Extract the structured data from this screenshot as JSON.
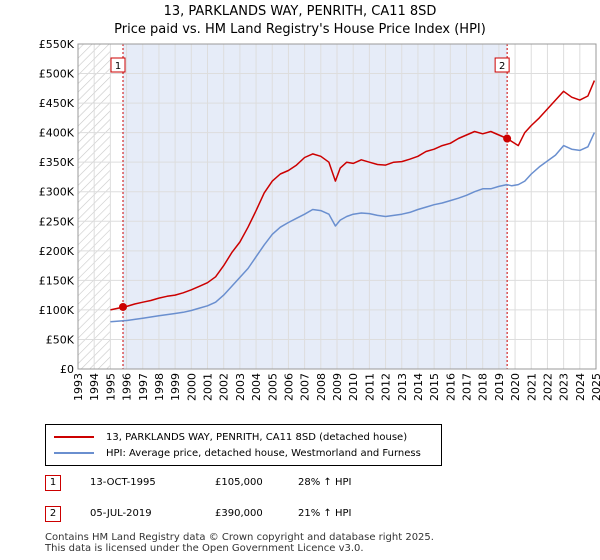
{
  "title_line1": "13, PARKLANDS WAY, PENRITH, CA11 8SD",
  "title_line2": "Price paid vs. HM Land Registry's House Price Index (HPI)",
  "colors": {
    "property": "#cc0000",
    "hpi": "#6a8fcf",
    "shade": "#e6ecf8",
    "hatch": "#c8c8c8",
    "grid": "#dddddd",
    "marker_box": "#cc0000"
  },
  "legend": {
    "property_label": "13, PARKLANDS WAY, PENRITH, CA11 8SD (detached house)",
    "hpi_label": "HPI: Average price, detached house, Westmorland and Furness"
  },
  "sales": [
    {
      "num": "1",
      "date": "13-OCT-1995",
      "price": "£105,000",
      "pct": "28% ↑ HPI"
    },
    {
      "num": "2",
      "date": "05-JUL-2019",
      "price": "£390,000",
      "pct": "21% ↑ HPI"
    }
  ],
  "footer": {
    "line1": "Contains HM Land Registry data © Crown copyright and database right 2025.",
    "line2": "This data is licensed under the Open Government Licence v3.0."
  },
  "chart_data": {
    "type": "line",
    "xlim": [
      1993,
      2025
    ],
    "ylim": [
      0,
      550000
    ],
    "x_ticks": [
      1993,
      1994,
      1995,
      1996,
      1997,
      1998,
      1999,
      2000,
      2001,
      2002,
      2003,
      2004,
      2005,
      2006,
      2007,
      2008,
      2009,
      2010,
      2011,
      2012,
      2013,
      2014,
      2015,
      2016,
      2017,
      2018,
      2019,
      2020,
      2021,
      2022,
      2023,
      2024,
      2025
    ],
    "y_ticks": [
      0,
      50000,
      100000,
      150000,
      200000,
      250000,
      300000,
      350000,
      400000,
      450000,
      500000,
      550000
    ],
    "y_tick_labels": [
      "£0",
      "£50K",
      "£100K",
      "£150K",
      "£200K",
      "£250K",
      "£300K",
      "£350K",
      "£400K",
      "£450K",
      "£500K",
      "£550K"
    ],
    "hatched_range": [
      1993,
      1995.0
    ],
    "shaded_range": [
      1995.78,
      2019.51
    ],
    "markers": [
      {
        "label": "1",
        "x": 1995.78,
        "y": 105000
      },
      {
        "label": "2",
        "x": 2019.51,
        "y": 390000
      }
    ],
    "series": [
      {
        "name": "13, PARKLANDS WAY, PENRITH, CA11 8SD (detached house)",
        "color": "#cc0000",
        "x": [
          1995.0,
          1995.5,
          1995.78,
          1996.0,
          1996.5,
          1997.0,
          1997.5,
          1998.0,
          1998.5,
          1999.0,
          1999.5,
          2000.0,
          2000.5,
          2001.0,
          2001.5,
          2002.0,
          2002.5,
          2003.0,
          2003.5,
          2004.0,
          2004.5,
          2005.0,
          2005.5,
          2006.0,
          2006.5,
          2007.0,
          2007.5,
          2008.0,
          2008.5,
          2008.9,
          2009.2,
          2009.6,
          2010.0,
          2010.5,
          2011.0,
          2011.5,
          2012.0,
          2012.5,
          2013.0,
          2013.5,
          2014.0,
          2014.5,
          2015.0,
          2015.5,
          2016.0,
          2016.5,
          2017.0,
          2017.5,
          2018.0,
          2018.5,
          2019.0,
          2019.51,
          2019.8,
          2020.2,
          2020.6,
          2021.0,
          2021.5,
          2022.0,
          2022.5,
          2023.0,
          2023.5,
          2024.0,
          2024.5,
          2024.9
        ],
        "y": [
          100000,
          103000,
          105000,
          106000,
          110000,
          113000,
          116000,
          120000,
          123000,
          125000,
          129000,
          134000,
          140000,
          146000,
          156000,
          175000,
          197000,
          215000,
          240000,
          268000,
          298000,
          318000,
          330000,
          336000,
          345000,
          358000,
          364000,
          360000,
          350000,
          318000,
          340000,
          350000,
          348000,
          354000,
          350000,
          346000,
          345000,
          350000,
          351000,
          355000,
          360000,
          368000,
          372000,
          378000,
          382000,
          390000,
          396000,
          402000,
          398000,
          402000,
          396000,
          390000,
          385000,
          378000,
          400000,
          412000,
          425000,
          440000,
          455000,
          470000,
          460000,
          455000,
          462000,
          488000
        ]
      },
      {
        "name": "HPI: Average price, detached house, Westmorland and Furness",
        "color": "#6a8fcf",
        "x": [
          1995.0,
          1995.5,
          1996.0,
          1996.5,
          1997.0,
          1997.5,
          1998.0,
          1998.5,
          1999.0,
          1999.5,
          2000.0,
          2000.5,
          2001.0,
          2001.5,
          2002.0,
          2002.5,
          2003.0,
          2003.5,
          2004.0,
          2004.5,
          2005.0,
          2005.5,
          2006.0,
          2006.5,
          2007.0,
          2007.5,
          2008.0,
          2008.5,
          2008.9,
          2009.2,
          2009.6,
          2010.0,
          2010.5,
          2011.0,
          2011.5,
          2012.0,
          2012.5,
          2013.0,
          2013.5,
          2014.0,
          2014.5,
          2015.0,
          2015.5,
          2016.0,
          2016.5,
          2017.0,
          2017.5,
          2018.0,
          2018.5,
          2019.0,
          2019.5,
          2019.8,
          2020.2,
          2020.6,
          2021.0,
          2021.5,
          2022.0,
          2022.5,
          2023.0,
          2023.5,
          2024.0,
          2024.5,
          2024.9
        ],
        "y": [
          80000,
          81000,
          82000,
          84000,
          86000,
          88000,
          90000,
          92000,
          94000,
          96000,
          99000,
          103000,
          107000,
          113000,
          125000,
          140000,
          155000,
          170000,
          190000,
          210000,
          228000,
          240000,
          248000,
          255000,
          262000,
          270000,
          268000,
          262000,
          242000,
          252000,
          258000,
          262000,
          264000,
          263000,
          260000,
          258000,
          260000,
          262000,
          265000,
          270000,
          274000,
          278000,
          281000,
          285000,
          289000,
          294000,
          300000,
          305000,
          305000,
          309000,
          312000,
          310000,
          312000,
          318000,
          330000,
          342000,
          352000,
          362000,
          378000,
          372000,
          370000,
          376000,
          400000
        ]
      }
    ]
  }
}
